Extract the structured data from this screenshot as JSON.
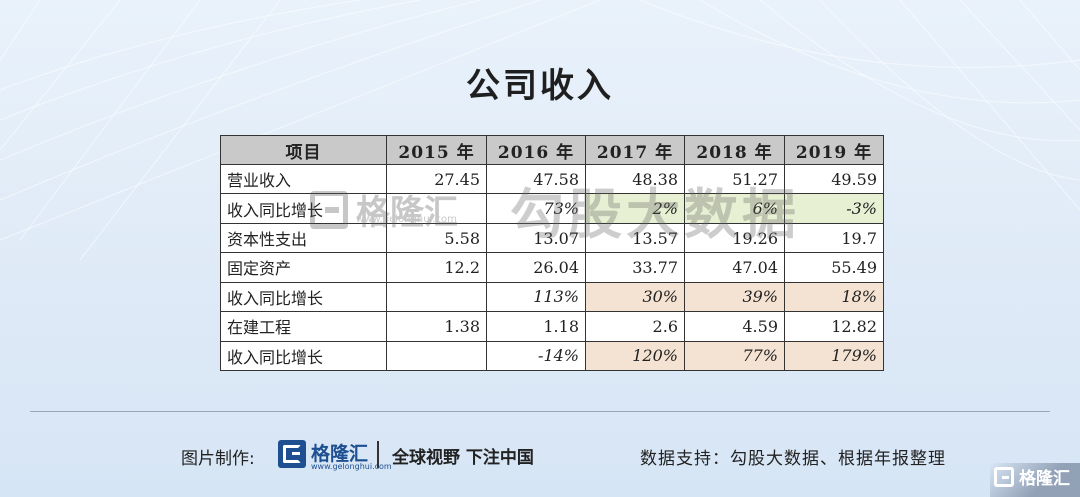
{
  "title": "公司收入",
  "table": {
    "headers": [
      "项目",
      "2015 年",
      "2016 年",
      "2017 年",
      "2018 年",
      "2019 年"
    ],
    "rows": [
      {
        "label": "营业收入",
        "cells": [
          "27.45",
          "47.58",
          "48.38",
          "51.27",
          "49.59"
        ],
        "kind": "num"
      },
      {
        "label": "收入同比增长",
        "cells": [
          "",
          "73%",
          "2%",
          "6%",
          "-3%"
        ],
        "kind": "pct",
        "highlight": "green"
      },
      {
        "label": "资本性支出",
        "cells": [
          "5.58",
          "13.07",
          "13.57",
          "19.26",
          "19.7"
        ],
        "kind": "num"
      },
      {
        "label": "固定资产",
        "cells": [
          "12.2",
          "26.04",
          "33.77",
          "47.04",
          "55.49"
        ],
        "kind": "num"
      },
      {
        "label": "收入同比增长",
        "cells": [
          "",
          "113%",
          "30%",
          "39%",
          "18%"
        ],
        "kind": "pct",
        "highlight": "orange"
      },
      {
        "label": "在建工程",
        "cells": [
          "1.38",
          "1.18",
          "2.6",
          "4.59",
          "12.82"
        ],
        "kind": "num"
      },
      {
        "label": "收入同比增长",
        "cells": [
          "",
          "-14%",
          "120%",
          "77%",
          "179%"
        ],
        "kind": "pct",
        "highlight": "orange"
      }
    ]
  },
  "watermark": {
    "brand": "格隆汇",
    "url": "www.gelonghui.com",
    "text": "勾股大数据"
  },
  "footer": {
    "credit_label": "图片制作:",
    "brand": "格隆汇",
    "brand_url": "www.gelonghui.com",
    "slogan": "全球视野 下注中国",
    "support": "数据支持：勾股大数据、根据年报整理"
  },
  "corner_logo": "格隆汇",
  "colors": {
    "brand_blue": "#1d4f91",
    "header_gray": "#c9c9c9",
    "highlight_green": "#e7f0d3",
    "highlight_orange": "#f4e3d2"
  }
}
